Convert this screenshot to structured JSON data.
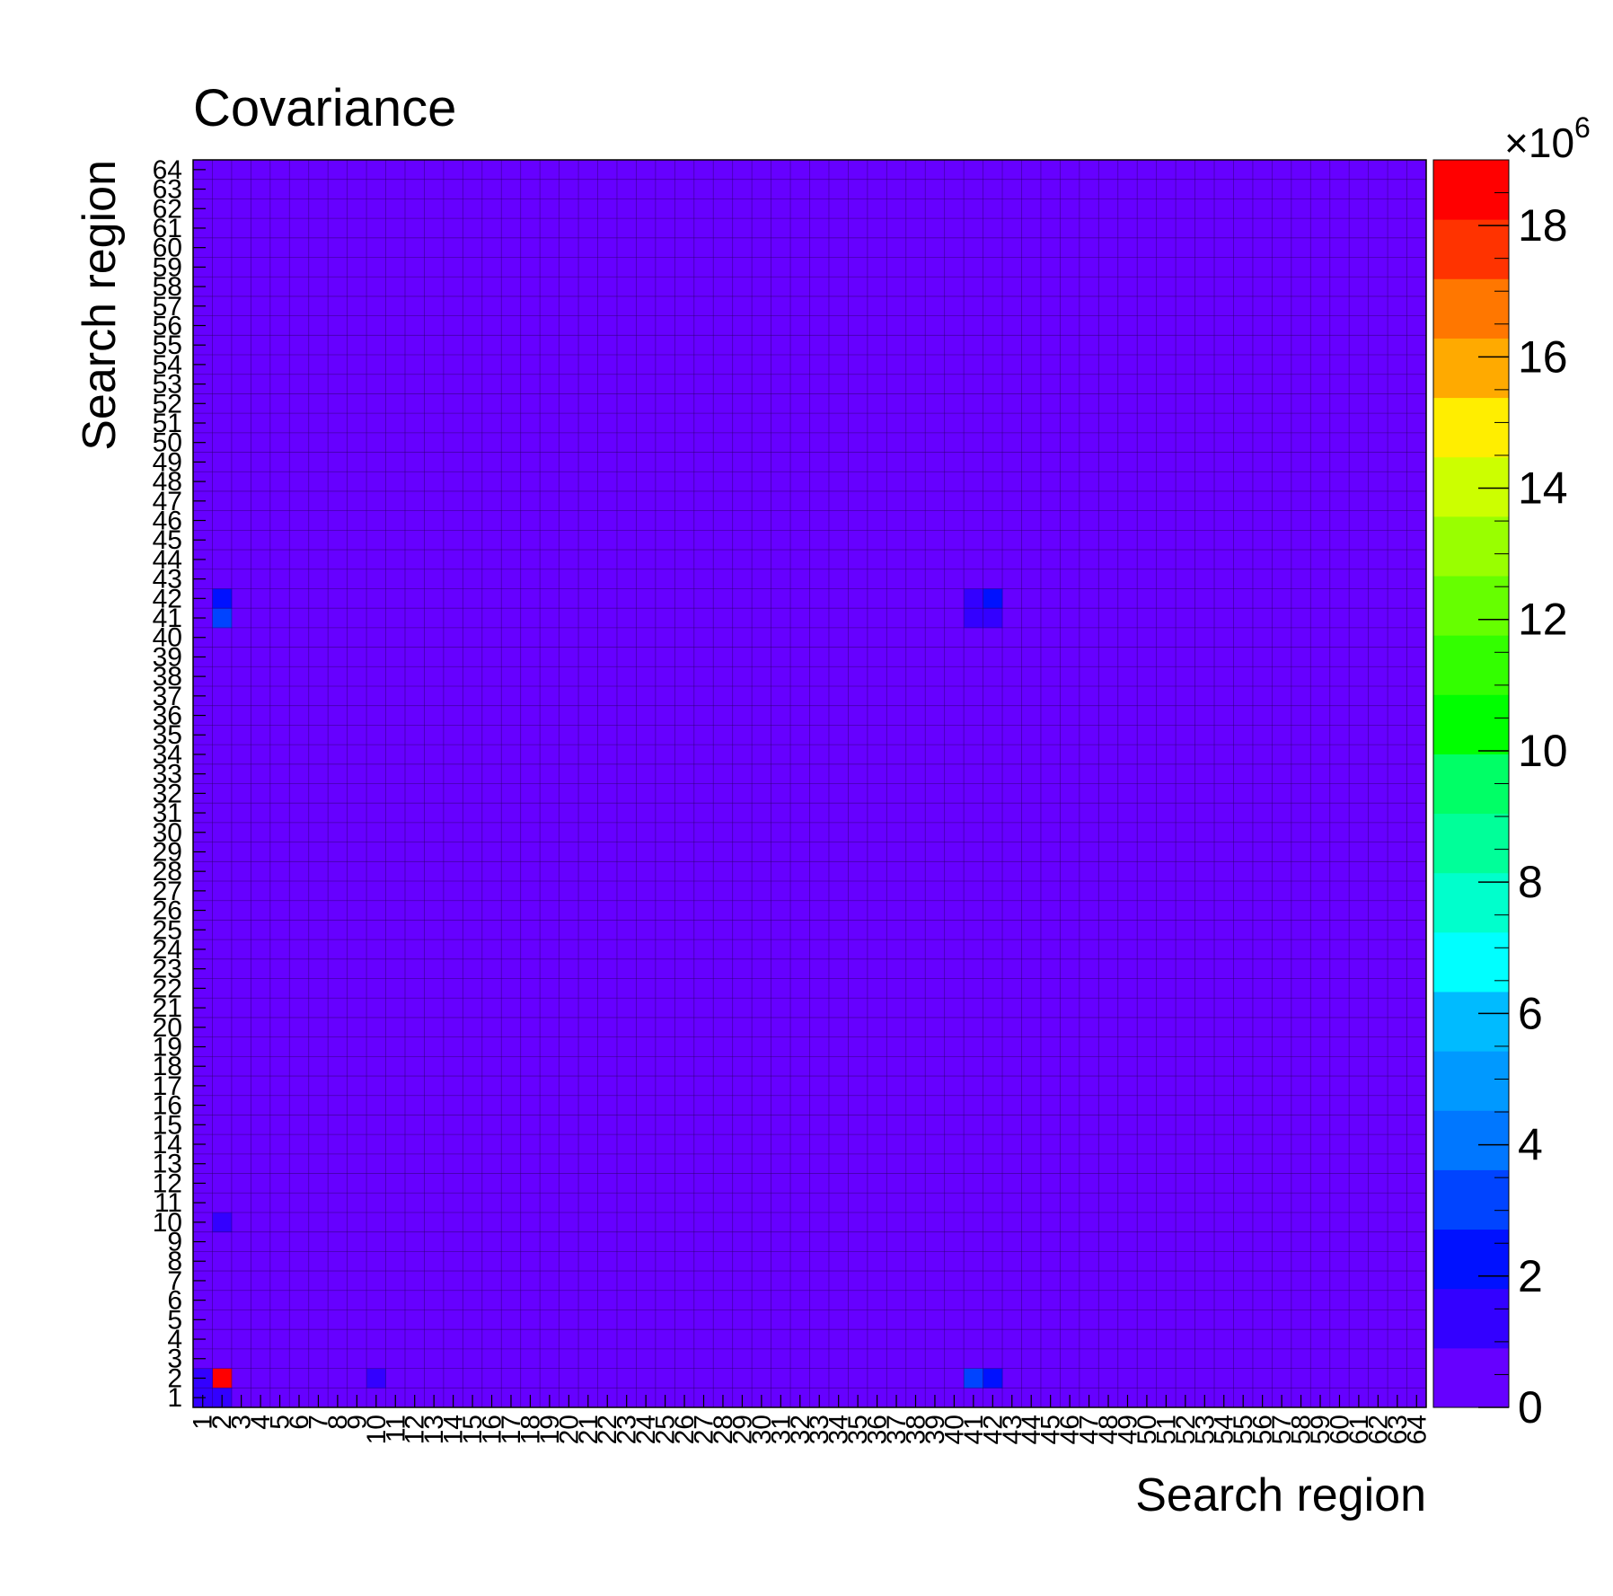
{
  "chart_data": {
    "type": "heatmap",
    "title": "Covariance",
    "xlabel": "Search region",
    "ylabel": "Search region",
    "n_bins": 64,
    "x_tick_labels": [
      "1",
      "2",
      "3",
      "4",
      "5",
      "6",
      "7",
      "8",
      "9",
      "10",
      "11",
      "12",
      "13",
      "14",
      "15",
      "16",
      "17",
      "18",
      "19",
      "20",
      "21",
      "22",
      "23",
      "24",
      "25",
      "26",
      "27",
      "28",
      "29",
      "30",
      "31",
      "32",
      "33",
      "34",
      "35",
      "36",
      "37",
      "38",
      "39",
      "40",
      "41",
      "42",
      "43",
      "44",
      "45",
      "46",
      "47",
      "48",
      "49",
      "50",
      "51",
      "52",
      "53",
      "54",
      "55",
      "56",
      "57",
      "58",
      "59",
      "60",
      "61",
      "62",
      "63",
      "64"
    ],
    "y_tick_labels": [
      "1",
      "2",
      "3",
      "4",
      "5",
      "6",
      "7",
      "8",
      "9",
      "10",
      "11",
      "12",
      "13",
      "14",
      "15",
      "16",
      "17",
      "18",
      "19",
      "20",
      "21",
      "22",
      "23",
      "24",
      "25",
      "26",
      "27",
      "28",
      "29",
      "30",
      "31",
      "32",
      "33",
      "34",
      "35",
      "36",
      "37",
      "38",
      "39",
      "40",
      "41",
      "42",
      "43",
      "44",
      "45",
      "46",
      "47",
      "48",
      "49",
      "50",
      "51",
      "52",
      "53",
      "54",
      "55",
      "56",
      "57",
      "58",
      "59",
      "60",
      "61",
      "62",
      "63",
      "64"
    ],
    "default_value": 0.3,
    "cells": [
      {
        "x": 2,
        "y": 2,
        "value": 18.9
      },
      {
        "x": 1,
        "y": 2,
        "value": 1.5
      },
      {
        "x": 2,
        "y": 1,
        "value": 1.5
      },
      {
        "x": 1,
        "y": 1,
        "value": 1.2
      },
      {
        "x": 10,
        "y": 2,
        "value": 1.5
      },
      {
        "x": 2,
        "y": 10,
        "value": 1.5
      },
      {
        "x": 41,
        "y": 2,
        "value": 3.5
      },
      {
        "x": 42,
        "y": 2,
        "value": 2.2
      },
      {
        "x": 2,
        "y": 41,
        "value": 3.5
      },
      {
        "x": 2,
        "y": 42,
        "value": 2.2
      },
      {
        "x": 41,
        "y": 41,
        "value": 1.5
      },
      {
        "x": 42,
        "y": 41,
        "value": 1.5
      },
      {
        "x": 41,
        "y": 42,
        "value": 1.5
      },
      {
        "x": 42,
        "y": 42,
        "value": 2.2
      }
    ],
    "z_range": [
      0,
      19
    ],
    "colorbar_ticks": [
      "0",
      "2",
      "4",
      "6",
      "8",
      "10",
      "12",
      "14",
      "16",
      "18"
    ],
    "colorbar_multiplier": "×10",
    "colorbar_exponent": "6",
    "palette": [
      "#6600ff",
      "#3300ff",
      "#0011ff",
      "#0044ff",
      "#0077ff",
      "#0099ff",
      "#00bbff",
      "#00ffff",
      "#00ffcc",
      "#00ff99",
      "#00ff66",
      "#00ff00",
      "#33ff00",
      "#66ff00",
      "#99ff00",
      "#ccff00",
      "#ffee00",
      "#ffaa00",
      "#ff7700",
      "#ff3300",
      "#ff0000"
    ]
  }
}
